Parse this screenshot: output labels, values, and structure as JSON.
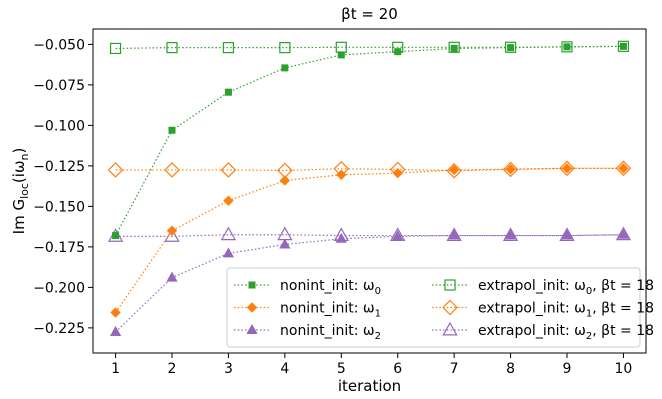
{
  "chart_data": {
    "type": "line",
    "title": "βt = 20",
    "xlabel": "iteration",
    "ylabel_main": "Im G",
    "ylabel_sub": "loc",
    "ylabel_tail": "(iω",
    "ylabel_sub2": "n",
    "ylabel_close": ")",
    "x": [
      1,
      2,
      3,
      4,
      5,
      6,
      7,
      8,
      9,
      10
    ],
    "xlim": [
      0.6,
      10.4
    ],
    "ylim": [
      -0.2405,
      -0.0405
    ],
    "xticks": [
      "1",
      "2",
      "3",
      "4",
      "5",
      "6",
      "7",
      "8",
      "9",
      "10"
    ],
    "yticks": [
      {
        "value": -0.05,
        "label": "−0.050"
      },
      {
        "value": -0.075,
        "label": "−0.075"
      },
      {
        "value": -0.1,
        "label": "−0.100"
      },
      {
        "value": -0.125,
        "label": "−0.125"
      },
      {
        "value": -0.15,
        "label": "−0.150"
      },
      {
        "value": -0.175,
        "label": "−0.175"
      },
      {
        "value": -0.2,
        "label": "−0.200"
      },
      {
        "value": -0.225,
        "label": "−0.225"
      }
    ],
    "grid": false,
    "legend_position": "lower-right",
    "series": [
      {
        "name": "nonint_init: ω",
        "sub": "0",
        "suffix": "",
        "color": "#2ca02c",
        "marker": "square",
        "filled": true,
        "values": [
          -0.168,
          -0.103,
          -0.0795,
          -0.0645,
          -0.0565,
          -0.0545,
          -0.0525,
          -0.052,
          -0.0515,
          -0.0512
        ]
      },
      {
        "name": "nonint_init: ω",
        "sub": "1",
        "suffix": "",
        "color": "#ff7f0e",
        "marker": "diamond",
        "filled": true,
        "values": [
          -0.2155,
          -0.165,
          -0.1465,
          -0.134,
          -0.1305,
          -0.1295,
          -0.1275,
          -0.127,
          -0.1265,
          -0.1265
        ]
      },
      {
        "name": "nonint_init: ω",
        "sub": "2",
        "suffix": "",
        "color": "#9467bd",
        "marker": "triangle",
        "filled": true,
        "values": [
          -0.2275,
          -0.194,
          -0.179,
          -0.1735,
          -0.17,
          -0.1685,
          -0.168,
          -0.168,
          -0.168,
          -0.1675
        ]
      },
      {
        "name": "extrapol_init: ω",
        "sub": "0",
        "suffix": ",  βt = 18",
        "color": "#2ca02c",
        "marker": "square",
        "filled": false,
        "values": [
          -0.0525,
          -0.052,
          -0.052,
          -0.052,
          -0.0518,
          -0.0518,
          -0.0518,
          -0.0518,
          -0.0515,
          -0.0512
        ]
      },
      {
        "name": "extrapol_init: ω",
        "sub": "1",
        "suffix": ",  βt = 18",
        "color": "#ff7f0e",
        "marker": "diamond",
        "filled": false,
        "values": [
          -0.1275,
          -0.1275,
          -0.1275,
          -0.1278,
          -0.1268,
          -0.1272,
          -0.128,
          -0.1272,
          -0.1265,
          -0.1265
        ]
      },
      {
        "name": "extrapol_init: ω",
        "sub": "2",
        "suffix": ",  βt = 18",
        "color": "#9467bd",
        "marker": "triangle",
        "filled": false,
        "values": [
          -0.1685,
          -0.1685,
          -0.1675,
          -0.1675,
          -0.168,
          -0.168,
          -0.168,
          -0.168,
          -0.168,
          -0.1675
        ]
      }
    ]
  }
}
